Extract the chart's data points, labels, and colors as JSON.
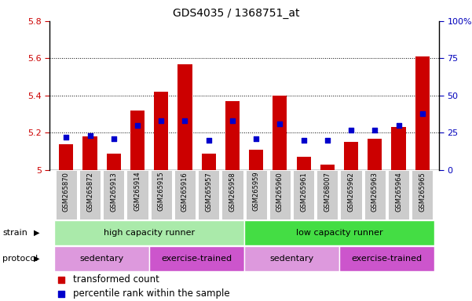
{
  "title": "GDS4035 / 1368751_at",
  "samples": [
    "GSM265870",
    "GSM265872",
    "GSM265913",
    "GSM265914",
    "GSM265915",
    "GSM265916",
    "GSM265957",
    "GSM265958",
    "GSM265959",
    "GSM265960",
    "GSM265961",
    "GSM268007",
    "GSM265962",
    "GSM265963",
    "GSM265964",
    "GSM265965"
  ],
  "transformed_count": [
    5.14,
    5.18,
    5.09,
    5.32,
    5.42,
    5.57,
    5.09,
    5.37,
    5.11,
    5.4,
    5.07,
    5.03,
    5.15,
    5.17,
    5.23,
    5.61
  ],
  "percentile_rank": [
    22,
    23,
    21,
    30,
    33,
    33,
    20,
    33,
    21,
    31,
    20,
    20,
    27,
    27,
    30,
    38
  ],
  "y_min": 5.0,
  "y_max": 5.8,
  "y_ticks": [
    5.0,
    5.2,
    5.4,
    5.6,
    5.8
  ],
  "y_tick_labels": [
    "5",
    "5.2",
    "5.4",
    "5.6",
    "5.8"
  ],
  "y2_ticks": [
    0,
    25,
    50,
    75,
    100
  ],
  "y2_tick_labels": [
    "0",
    "25",
    "50",
    "75",
    "100%"
  ],
  "bar_color": "#cc0000",
  "dot_color": "#0000cc",
  "bar_width": 0.6,
  "grid_lines": [
    5.2,
    5.4,
    5.6
  ],
  "strain_groups": [
    {
      "label": "high capacity runner",
      "start": 0,
      "end": 8,
      "color": "#aaeaaa"
    },
    {
      "label": "low capacity runner",
      "start": 8,
      "end": 16,
      "color": "#44dd44"
    }
  ],
  "protocol_groups": [
    {
      "label": "sedentary",
      "start": 0,
      "end": 4,
      "color": "#dd99dd"
    },
    {
      "label": "exercise-trained",
      "start": 4,
      "end": 8,
      "color": "#cc55cc"
    },
    {
      "label": "sedentary",
      "start": 8,
      "end": 12,
      "color": "#dd99dd"
    },
    {
      "label": "exercise-trained",
      "start": 12,
      "end": 16,
      "color": "#cc55cc"
    }
  ],
  "tick_color_left": "#cc0000",
  "tick_color_right": "#0000bb",
  "bg_color": "#ffffff",
  "sample_bg_color": "#cccccc",
  "legend_red_label": "transformed count",
  "legend_blue_label": "percentile rank within the sample"
}
